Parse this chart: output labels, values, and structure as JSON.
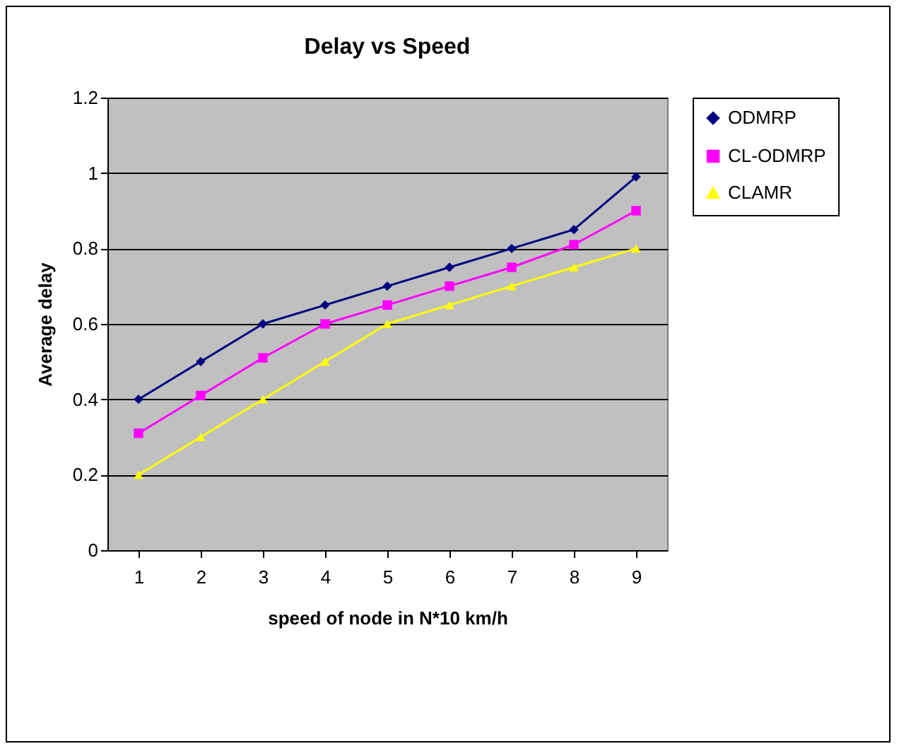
{
  "chart_data": {
    "type": "line",
    "title": "Delay vs Speed",
    "xlabel": "speed of node in N*10 km/h",
    "ylabel": "Average delay",
    "categories": [
      "1",
      "2",
      "3",
      "4",
      "5",
      "6",
      "7",
      "8",
      "9"
    ],
    "series": [
      {
        "name": "ODMRP",
        "color": "#000080",
        "marker": "diamond",
        "values": [
          0.4,
          0.5,
          0.6,
          0.65,
          0.7,
          0.75,
          0.8,
          0.85,
          0.99
        ]
      },
      {
        "name": "CL-ODMRP",
        "color": "#ff00ff",
        "marker": "square",
        "values": [
          0.31,
          0.41,
          0.51,
          0.6,
          0.65,
          0.7,
          0.75,
          0.81,
          0.9
        ]
      },
      {
        "name": "CLAMR",
        "color": "#ffff00",
        "marker": "triangle",
        "values": [
          0.2,
          0.3,
          0.4,
          0.5,
          0.6,
          0.65,
          0.7,
          0.75,
          0.8
        ]
      }
    ],
    "ylim": [
      0,
      1.2
    ],
    "yticks": [
      0,
      0.2,
      0.4,
      0.6,
      0.8,
      1,
      1.2
    ],
    "grid": "y",
    "legend": "right",
    "line_style": "solid"
  }
}
